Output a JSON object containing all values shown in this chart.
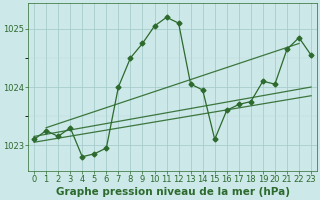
{
  "title": "Graphe pression niveau de la mer (hPa)",
  "x_hours": [
    0,
    1,
    2,
    3,
    4,
    5,
    6,
    7,
    8,
    9,
    10,
    11,
    12,
    13,
    14,
    15,
    16,
    17,
    18,
    19,
    20,
    21,
    22,
    23
  ],
  "pressure": [
    1023.1,
    1023.25,
    1023.15,
    1023.3,
    1022.8,
    1022.85,
    1022.95,
    1024.0,
    1024.5,
    1024.75,
    1025.05,
    1025.2,
    1025.1,
    1024.05,
    1023.95,
    1023.1,
    1023.6,
    1023.7,
    1023.75,
    1024.1,
    1024.05,
    1024.65,
    1024.85,
    1024.55
  ],
  "trend_lines": [
    {
      "x0": 0,
      "y0": 1023.05,
      "x1": 23,
      "y1": 1023.85
    },
    {
      "x0": 0,
      "y0": 1023.15,
      "x1": 23,
      "y1": 1024.0
    },
    {
      "x0": 1,
      "y0": 1023.3,
      "x1": 22,
      "y1": 1024.75
    }
  ],
  "ylim": [
    1022.55,
    1025.45
  ],
  "yticks": [
    1023,
    1024,
    1025
  ],
  "xticks": [
    0,
    1,
    2,
    3,
    4,
    5,
    6,
    7,
    8,
    9,
    10,
    11,
    12,
    13,
    14,
    15,
    16,
    17,
    18,
    19,
    20,
    21,
    22,
    23
  ],
  "line_color": "#2d6a2d",
  "bg_color": "#cce8e8",
  "plot_bg_color": "#cce8e8",
  "grid_color_major": "#a8cccc",
  "grid_color_minor": "#bcd8d8",
  "marker": "D",
  "marker_size": 2.5,
  "title_fontsize": 7.5,
  "tick_fontsize": 6
}
